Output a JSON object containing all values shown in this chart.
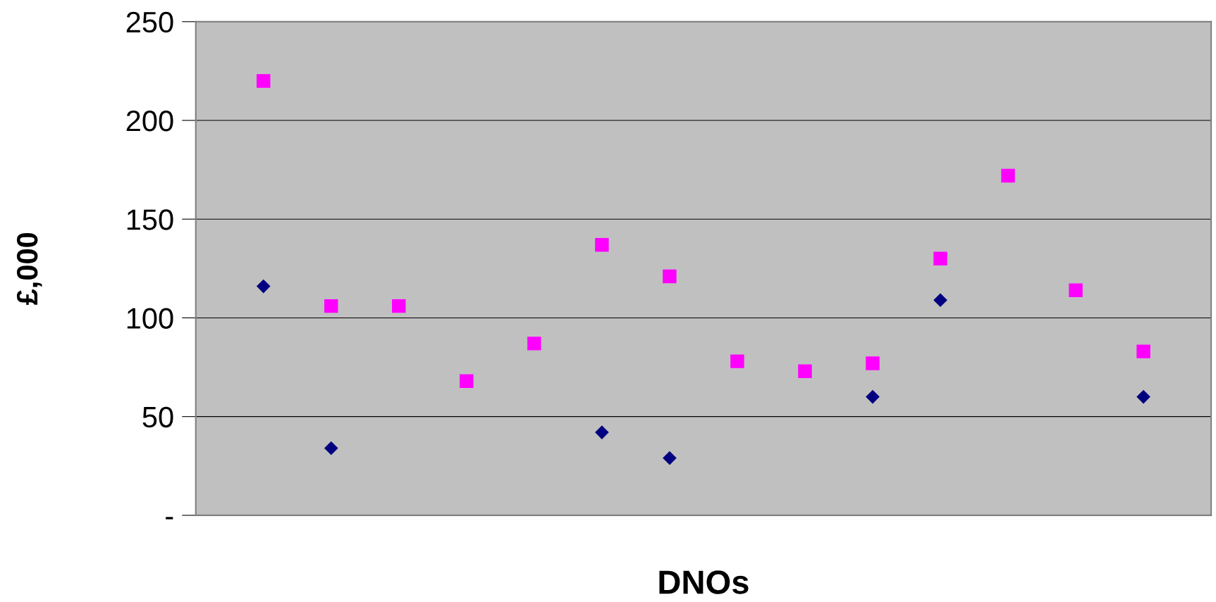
{
  "chart_data": {
    "type": "scatter",
    "xlabel": "DNOs",
    "ylabel": "£,000",
    "categories": [
      null,
      null,
      null,
      null,
      null,
      null,
      null,
      null,
      null,
      null,
      null,
      null,
      null,
      null
    ],
    "series": [
      {
        "color": "#000080",
        "marker": "diamond",
        "values": [
          116,
          34,
          null,
          null,
          null,
          42,
          29,
          null,
          null,
          60,
          109,
          null,
          null,
          60
        ]
      },
      {
        "color": "#ff00ff",
        "marker": "square",
        "values": [
          220,
          106,
          106,
          68,
          87,
          137,
          121,
          78,
          73,
          77,
          130,
          172,
          114,
          83
        ]
      }
    ],
    "ylim": [
      0,
      250
    ],
    "yticks": [
      {
        "value": 0,
        "label": "-"
      },
      50,
      100,
      150,
      200,
      250
    ],
    "grid": "y",
    "legend": false
  }
}
